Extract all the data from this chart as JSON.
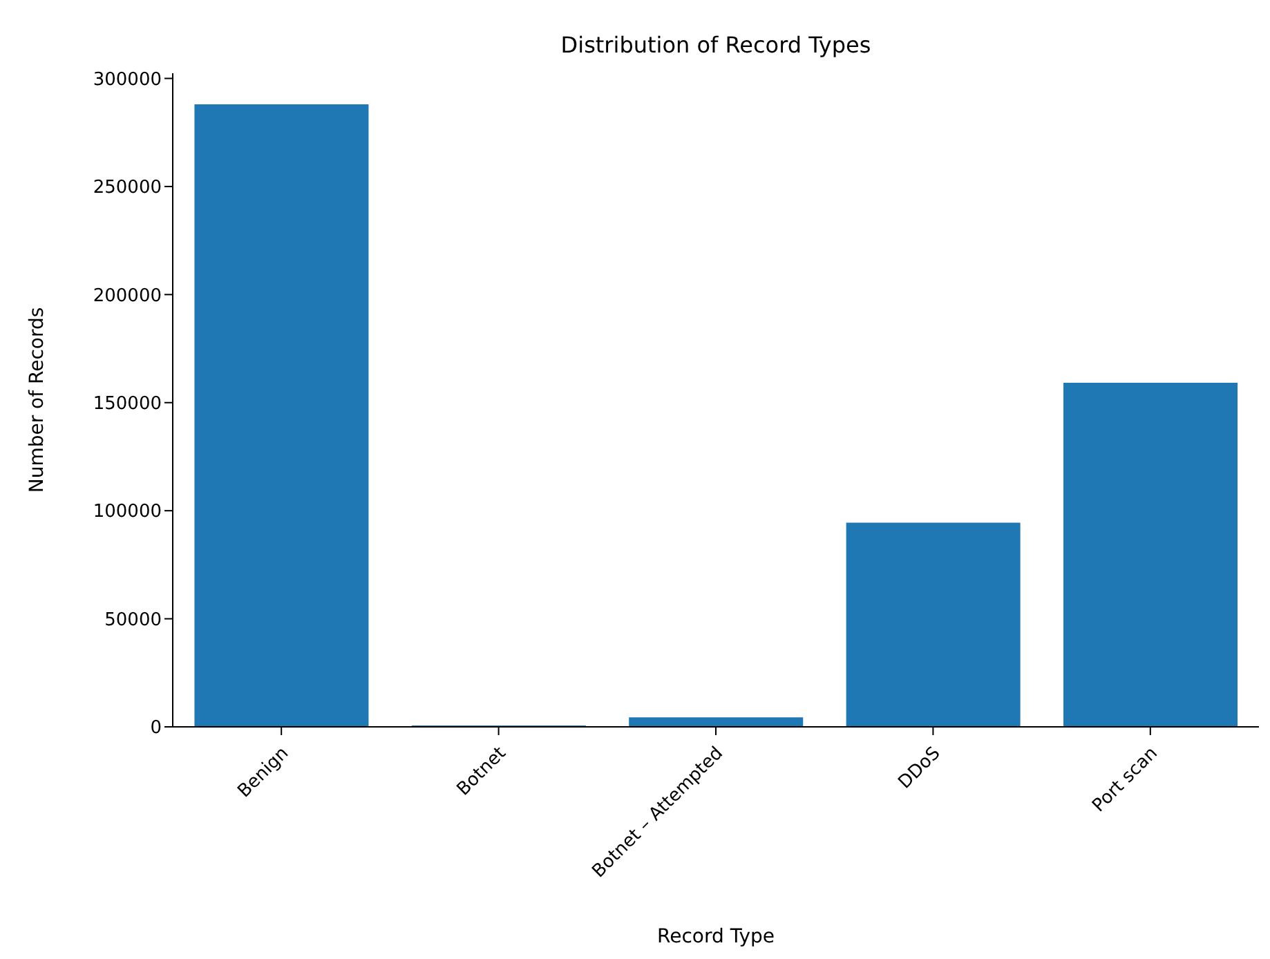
{
  "chart_data": {
    "type": "bar",
    "title": "Distribution of Record Types",
    "xlabel": "Record Type",
    "ylabel": "Number of Records",
    "categories": [
      "Benign",
      "Botnet",
      "Botnet – Attempted",
      "DDoS",
      "Port scan"
    ],
    "values": [
      288000,
      600,
      4400,
      94500,
      159200
    ],
    "color": "#1f77b4",
    "ylim": [
      0,
      302400
    ],
    "yticks": [
      0,
      50000,
      100000,
      150000,
      200000,
      250000,
      300000
    ],
    "grid": false
  }
}
